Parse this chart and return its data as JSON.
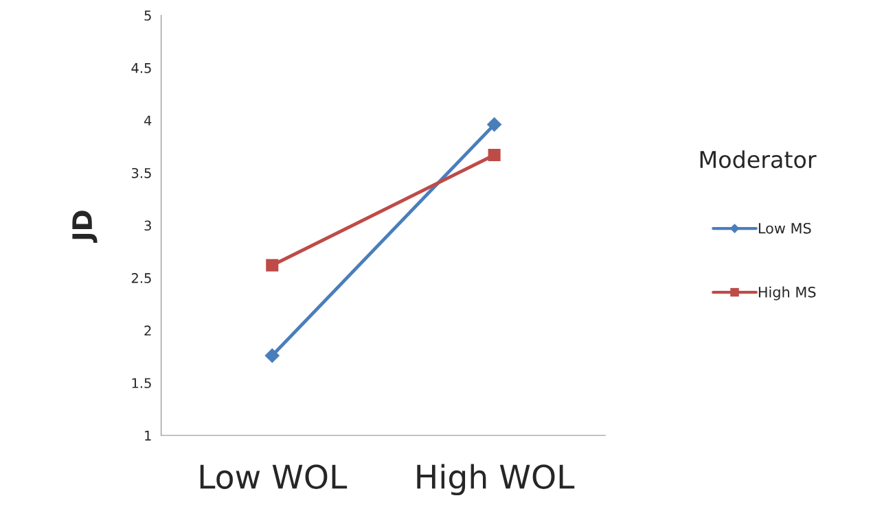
{
  "chart_data": {
    "type": "line",
    "ylabel": "JD",
    "legend_title": "Moderator",
    "categories": [
      "Low WOL",
      "High WOL"
    ],
    "series": [
      {
        "name": "Low MS",
        "color": "#4a7ebb",
        "values": [
          1.76,
          3.96
        ],
        "marker": "diamond"
      },
      {
        "name": "High MS",
        "color": "#be4b48",
        "values": [
          2.62,
          3.67
        ],
        "marker": "square"
      }
    ],
    "ylim": [
      1,
      5
    ],
    "yticks": [
      1,
      1.5,
      2,
      2.5,
      3,
      3.5,
      4,
      4.5,
      5
    ],
    "grid": false,
    "legend": "right"
  }
}
